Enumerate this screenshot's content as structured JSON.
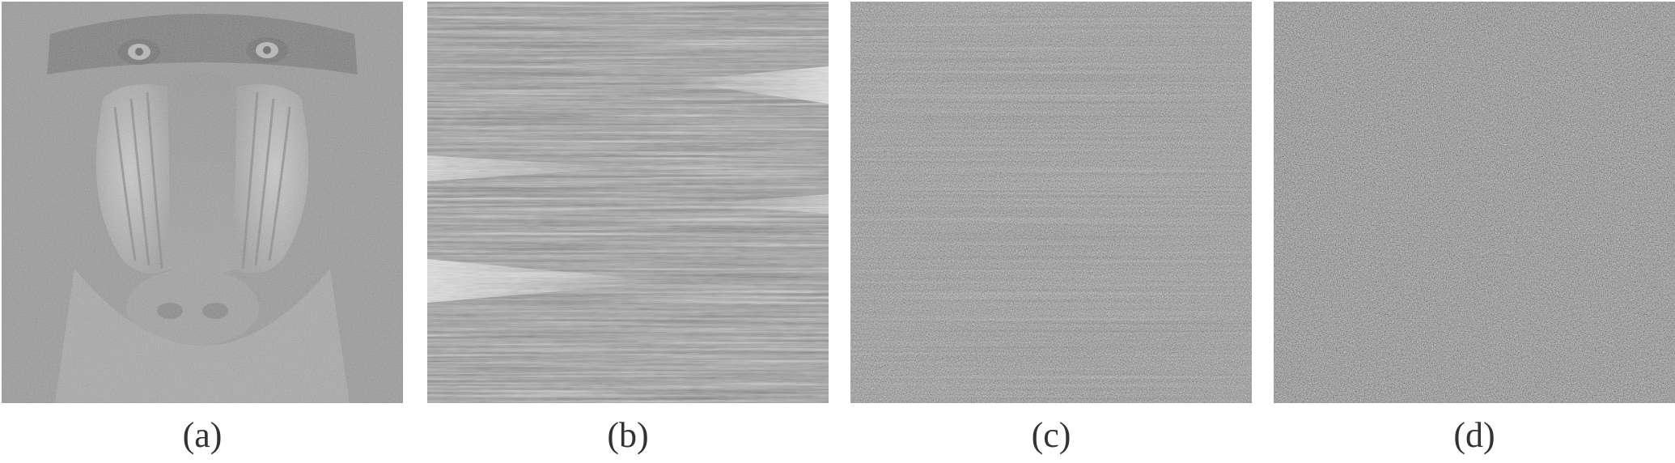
{
  "figure": {
    "panels": [
      {
        "id": "a",
        "caption": "(a)",
        "content": "plain-image"
      },
      {
        "id": "b",
        "content": "intermediate-cipher",
        "caption": "(b)"
      },
      {
        "id": "c",
        "content": "intermediate-cipher",
        "caption": "(c)"
      },
      {
        "id": "d",
        "content": "final-cipher",
        "caption": "(d)"
      }
    ]
  }
}
